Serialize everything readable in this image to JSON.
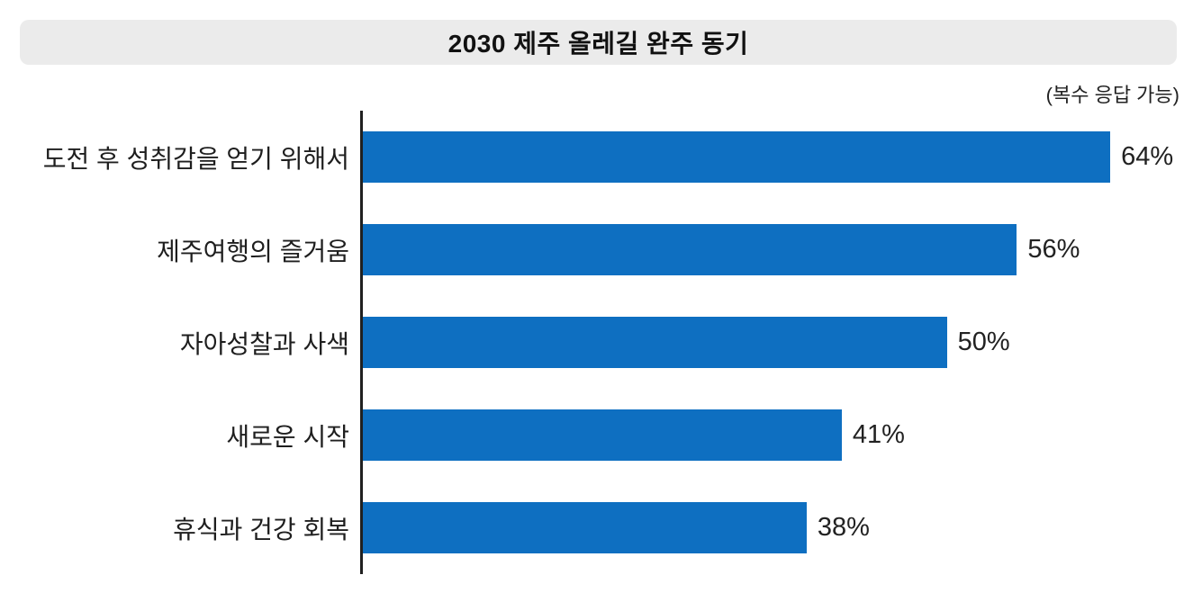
{
  "title": "2030 제주 올레길 완주 동기",
  "note": "(복수 응답 가능)",
  "colors": {
    "bar": "#0E6FC1",
    "banner_bg": "#EBEBEB",
    "axis": "#202020",
    "label_text": "#1E1E1E",
    "value_text": "#222222",
    "title_text": "#111111",
    "background": "#FFFFFF"
  },
  "chart_data": {
    "type": "bar",
    "orientation": "horizontal",
    "title": "2030 제주 올레길 완주 동기",
    "subtitle": "(복수 응답 가능)",
    "categories": [
      "도전 후 성취감을 얻기 위해서",
      "제주여행의 즐거움",
      "자아성찰과 사색",
      "새로운 시작",
      "휴식과 건강 회복"
    ],
    "values": [
      64,
      56,
      50,
      41,
      38
    ],
    "value_suffix": "%",
    "xlabel": "",
    "ylabel": "",
    "xlim": [
      0,
      70
    ],
    "grid": false,
    "legend": false,
    "data_labels": true,
    "sort": "descending"
  }
}
